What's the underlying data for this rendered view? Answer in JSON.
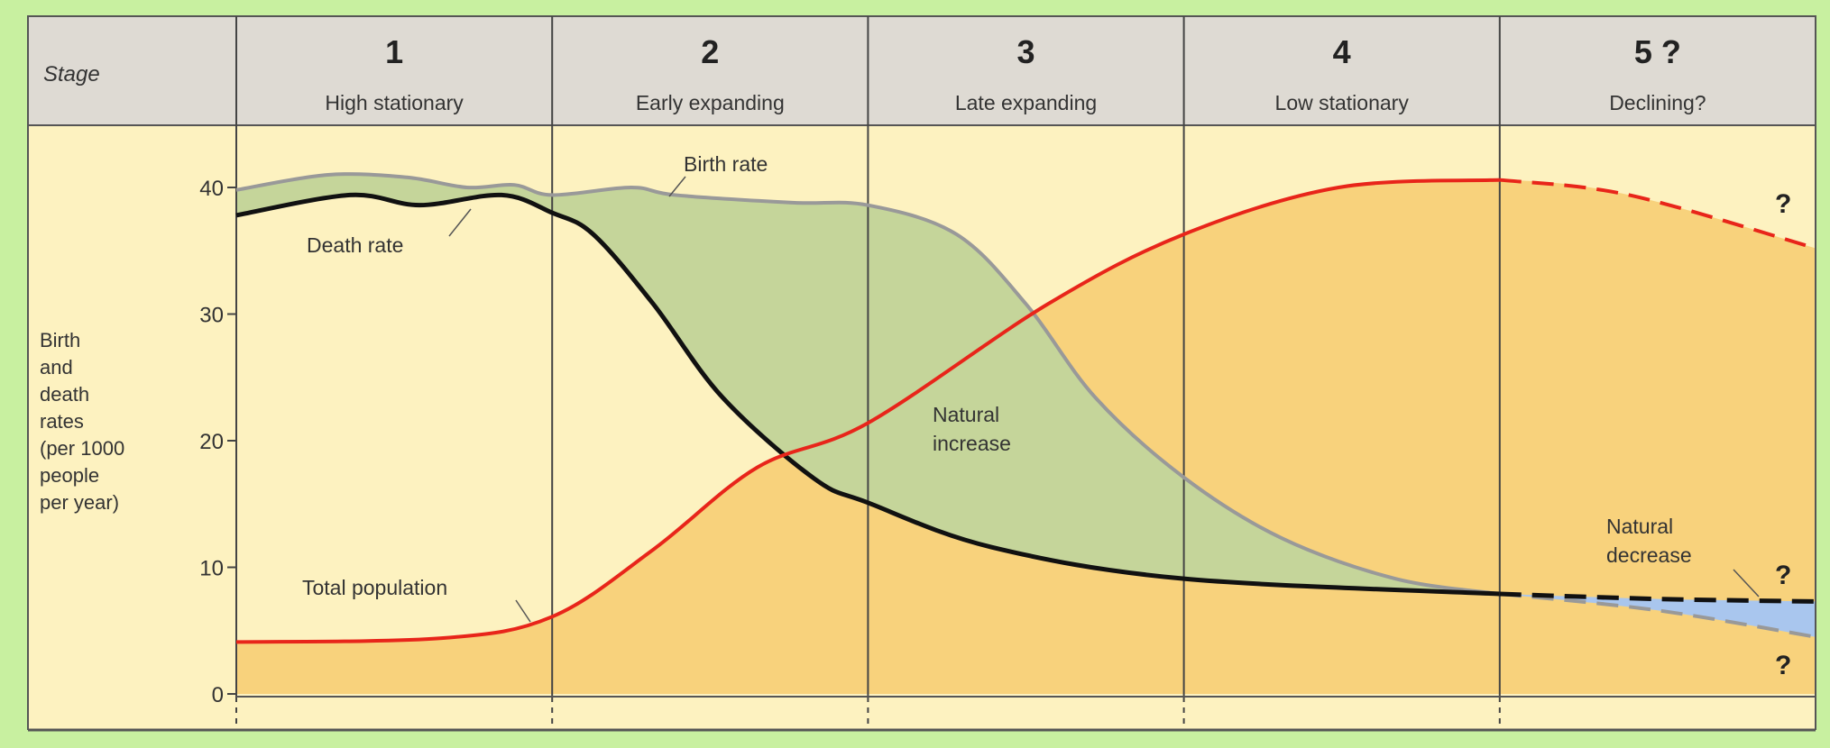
{
  "colors": {
    "page_bg": "#c8f0a0",
    "plot_bg": "#fdf2c0",
    "header_bg": "#dedad3",
    "natural_increase": "#c5d59a",
    "population_fill": "#f8d27c",
    "natural_decrease": "#a9c6ee",
    "birth_rate": "#999999",
    "death_rate": "#111111",
    "total_population": "#e8251a"
  },
  "chart_data": {
    "type": "line",
    "header": {
      "stage_label": "Stage",
      "stages": [
        {
          "number": "1",
          "name": "High stationary"
        },
        {
          "number": "2",
          "name": "Early expanding"
        },
        {
          "number": "3",
          "name": "Late expanding"
        },
        {
          "number": "4",
          "name": "Low stationary"
        },
        {
          "number": "5 ?",
          "name": "Declining?"
        }
      ]
    },
    "ylabel_lines": [
      "Birth",
      "and",
      "death",
      "rates",
      "(per 1000",
      "people",
      "per year)"
    ],
    "ylim": [
      0,
      40
    ],
    "yticks": [
      "0",
      "10",
      "20",
      "30",
      "40"
    ],
    "xlim_stages": [
      0,
      5
    ],
    "grid": false,
    "series": [
      {
        "name": "Birth rate",
        "key": "birth",
        "x": [
          0,
          0.29,
          0.54,
          0.73,
          0.88,
          1.0,
          1.25,
          1.39,
          1.76,
          2.0,
          2.28,
          2.5,
          2.72,
          3.0,
          3.31,
          3.67,
          4.0
        ],
        "y": [
          39.8,
          41,
          40.8,
          40,
          40.2,
          39.4,
          40,
          39.4,
          38.8,
          38.6,
          36.3,
          30.8,
          23.4,
          17.1,
          12.3,
          9.1,
          7.9
        ],
        "projected": {
          "x": [
            4.0,
            4.5,
            5.0
          ],
          "y": [
            7.9,
            6.6,
            4.5
          ]
        }
      },
      {
        "name": "Death rate",
        "key": "death",
        "x": [
          0,
          0.36,
          0.58,
          0.84,
          1.0,
          1.13,
          1.32,
          1.54,
          1.83,
          2.0,
          2.39,
          3.0,
          4.0
        ],
        "y": [
          37.8,
          39.4,
          38.6,
          39.4,
          38,
          36.3,
          30.8,
          23.4,
          17,
          15.1,
          11.6,
          9.1,
          7.9
        ],
        "projected": {
          "x": [
            4.0,
            4.5,
            5.0
          ],
          "y": [
            7.9,
            7.5,
            7.3
          ]
        }
      },
      {
        "name": "Total population",
        "key": "population",
        "x": [
          0,
          0.65,
          1.0,
          1.32,
          1.65,
          2.0,
          2.57,
          3.0,
          3.49,
          4.0
        ],
        "y": [
          4.1,
          4.4,
          6.1,
          11.4,
          17.9,
          21.4,
          30.8,
          36.3,
          40,
          40.6
        ],
        "projected": {
          "x": [
            4.0,
            4.41,
            5.0
          ],
          "y": [
            40.6,
            39.4,
            35.2
          ]
        }
      }
    ],
    "annotations": {
      "birth_rate": "Birth rate",
      "death_rate": "Death rate",
      "total_population": "Total population",
      "natural_increase_1": "Natural",
      "natural_increase_2": "increase",
      "natural_decrease_1": "Natural",
      "natural_decrease_2": "decrease",
      "question": "?"
    }
  }
}
